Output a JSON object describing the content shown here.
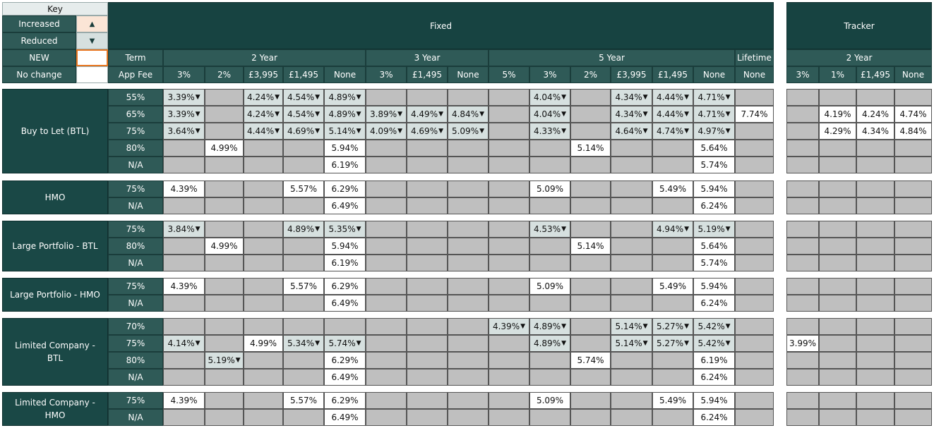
{
  "key": {
    "title": "Key",
    "items": [
      {
        "label": "Increased",
        "symbol": "▲"
      },
      {
        "label": "Reduced",
        "symbol": "▼"
      },
      {
        "label": "NEW"
      },
      {
        "label": "No change"
      }
    ]
  },
  "header": {
    "term_label": "Term",
    "app_fee_label": "App Fee",
    "groups": [
      {
        "title": "Fixed",
        "terms": [
          {
            "label": "2 Year",
            "fees": [
              "3%",
              "2%",
              "£3,995",
              "£1,495",
              "None"
            ]
          },
          {
            "label": "3 Year",
            "fees": [
              "3%",
              "£1,495",
              "None"
            ]
          },
          {
            "label": "5 Year",
            "fees": [
              "5%",
              "3%",
              "2%",
              "£3,995",
              "£1,495",
              "None"
            ]
          },
          {
            "label": "Lifetime",
            "fees": [
              "None"
            ]
          }
        ]
      },
      {
        "title": "Tracker",
        "terms": [
          {
            "label": "2 Year",
            "fees": [
              "3%",
              "1%",
              "£1,495",
              "None"
            ]
          }
        ]
      }
    ]
  },
  "sections": [
    {
      "name": "Buy to Let (BTL)",
      "rows": [
        {
          "ltv": "55%",
          "cells": [
            {
              "value": "3.39%",
              "change": "reduced"
            },
            null,
            {
              "value": "4.24%",
              "change": "reduced"
            },
            {
              "value": "4.54%",
              "change": "reduced"
            },
            {
              "value": "4.89%",
              "change": "reduced"
            },
            null,
            null,
            null,
            null,
            {
              "value": "4.04%",
              "change": "reduced"
            },
            null,
            {
              "value": "4.34%",
              "change": "reduced"
            },
            {
              "value": "4.44%",
              "change": "reduced"
            },
            {
              "value": "4.71%",
              "change": "reduced"
            },
            null,
            null,
            null,
            null,
            null
          ]
        },
        {
          "ltv": "65%",
          "cells": [
            {
              "value": "3.39%",
              "change": "reduced"
            },
            null,
            {
              "value": "4.24%",
              "change": "reduced"
            },
            {
              "value": "4.54%",
              "change": "reduced"
            },
            {
              "value": "4.89%",
              "change": "reduced"
            },
            {
              "value": "3.89%",
              "change": "reduced"
            },
            {
              "value": "4.49%",
              "change": "reduced"
            },
            {
              "value": "4.84%",
              "change": "reduced"
            },
            null,
            {
              "value": "4.04%",
              "change": "reduced"
            },
            null,
            {
              "value": "4.34%",
              "change": "reduced"
            },
            {
              "value": "4.44%",
              "change": "reduced"
            },
            {
              "value": "4.71%",
              "change": "reduced"
            },
            "7.74%",
            null,
            "4.19%",
            "4.24%",
            "4.74%"
          ]
        },
        {
          "ltv": "75%",
          "cells": [
            {
              "value": "3.64%",
              "change": "reduced"
            },
            null,
            {
              "value": "4.44%",
              "change": "reduced"
            },
            {
              "value": "4.69%",
              "change": "reduced"
            },
            {
              "value": "5.14%",
              "change": "reduced"
            },
            {
              "value": "4.09%",
              "change": "reduced"
            },
            {
              "value": "4.69%",
              "change": "reduced"
            },
            {
              "value": "5.09%",
              "change": "reduced"
            },
            null,
            {
              "value": "4.33%",
              "change": "reduced"
            },
            null,
            {
              "value": "4.64%",
              "change": "reduced"
            },
            {
              "value": "4.74%",
              "change": "reduced"
            },
            {
              "value": "4.97%",
              "change": "reduced"
            },
            null,
            null,
            "4.29%",
            "4.34%",
            "4.84%"
          ]
        },
        {
          "ltv": "80%",
          "cells": [
            null,
            "4.99%",
            null,
            null,
            "5.94%",
            null,
            null,
            null,
            null,
            null,
            "5.14%",
            null,
            null,
            "5.64%",
            null,
            null,
            null,
            null,
            null
          ]
        },
        {
          "ltv": "N/A",
          "cells": [
            null,
            null,
            null,
            null,
            "6.19%",
            null,
            null,
            null,
            null,
            null,
            null,
            null,
            null,
            "5.74%",
            null,
            null,
            null,
            null,
            null
          ]
        }
      ]
    },
    {
      "name": "HMO",
      "rows": [
        {
          "ltv": "75%",
          "cells": [
            "4.39%",
            null,
            null,
            "5.57%",
            "6.29%",
            null,
            null,
            null,
            null,
            "5.09%",
            null,
            null,
            "5.49%",
            "5.94%",
            null,
            null,
            null,
            null,
            null
          ]
        },
        {
          "ltv": "N/A",
          "cells": [
            null,
            null,
            null,
            null,
            "6.49%",
            null,
            null,
            null,
            null,
            null,
            null,
            null,
            null,
            "6.24%",
            null,
            null,
            null,
            null,
            null
          ]
        }
      ]
    },
    {
      "name": "Large Portfolio - BTL",
      "rows": [
        {
          "ltv": "75%",
          "cells": [
            {
              "value": "3.84%",
              "change": "reduced"
            },
            null,
            null,
            {
              "value": "4.89%",
              "change": "reduced"
            },
            {
              "value": "5.35%",
              "change": "reduced"
            },
            null,
            null,
            null,
            null,
            {
              "value": "4.53%",
              "change": "reduced"
            },
            null,
            null,
            {
              "value": "4.94%",
              "change": "reduced"
            },
            {
              "value": "5.19%",
              "change": "reduced"
            },
            null,
            null,
            null,
            null,
            null
          ]
        },
        {
          "ltv": "80%",
          "cells": [
            null,
            "4.99%",
            null,
            null,
            "5.94%",
            null,
            null,
            null,
            null,
            null,
            "5.14%",
            null,
            null,
            "5.64%",
            null,
            null,
            null,
            null,
            null
          ]
        },
        {
          "ltv": "N/A",
          "cells": [
            null,
            null,
            null,
            null,
            "6.19%",
            null,
            null,
            null,
            null,
            null,
            null,
            null,
            null,
            "5.74%",
            null,
            null,
            null,
            null,
            null
          ]
        }
      ]
    },
    {
      "name": "Large Portfolio - HMO",
      "rows": [
        {
          "ltv": "75%",
          "cells": [
            "4.39%",
            null,
            null,
            "5.57%",
            "6.29%",
            null,
            null,
            null,
            null,
            "5.09%",
            null,
            null,
            "5.49%",
            "5.94%",
            null,
            null,
            null,
            null,
            null
          ]
        },
        {
          "ltv": "N/A",
          "cells": [
            null,
            null,
            null,
            null,
            "6.49%",
            null,
            null,
            null,
            null,
            null,
            null,
            null,
            null,
            "6.24%",
            null,
            null,
            null,
            null,
            null
          ]
        }
      ]
    },
    {
      "name": "Limited Company - BTL",
      "rows": [
        {
          "ltv": "70%",
          "cells": [
            null,
            null,
            null,
            null,
            null,
            null,
            null,
            null,
            {
              "value": "4.39%",
              "change": "reduced"
            },
            {
              "value": "4.89%",
              "change": "reduced"
            },
            null,
            {
              "value": "5.14%",
              "change": "reduced"
            },
            {
              "value": "5.27%",
              "change": "reduced"
            },
            {
              "value": "5.42%",
              "change": "reduced"
            },
            null,
            null,
            null,
            null,
            null
          ]
        },
        {
          "ltv": "75%",
          "cells": [
            {
              "value": "4.14%",
              "change": "reduced"
            },
            null,
            "4.99%",
            {
              "value": "5.34%",
              "change": "reduced"
            },
            {
              "value": "5.74%",
              "change": "reduced"
            },
            null,
            null,
            null,
            null,
            {
              "value": "4.89%",
              "change": "reduced"
            },
            null,
            {
              "value": "5.14%",
              "change": "reduced"
            },
            {
              "value": "5.27%",
              "change": "reduced"
            },
            {
              "value": "5.42%",
              "change": "reduced"
            },
            null,
            "3.99%",
            null,
            null,
            null
          ]
        },
        {
          "ltv": "80%",
          "cells": [
            null,
            {
              "value": "5.19%",
              "change": "reduced"
            },
            null,
            null,
            "6.29%",
            null,
            null,
            null,
            null,
            null,
            "5.74%",
            null,
            null,
            "6.19%",
            null,
            null,
            null,
            null,
            null
          ]
        },
        {
          "ltv": "N/A",
          "cells": [
            null,
            null,
            null,
            null,
            "6.49%",
            null,
            null,
            null,
            null,
            null,
            null,
            null,
            null,
            "6.24%",
            null,
            null,
            null,
            null,
            null
          ]
        }
      ]
    },
    {
      "name": "Limited Company - HMO",
      "rows": [
        {
          "ltv": "75%",
          "cells": [
            "4.39%",
            null,
            null,
            "5.57%",
            "6.29%",
            null,
            null,
            null,
            null,
            "5.09%",
            null,
            null,
            "5.49%",
            "5.94%",
            null,
            null,
            null,
            null,
            null
          ]
        },
        {
          "ltv": "N/A",
          "cells": [
            null,
            null,
            null,
            null,
            "6.49%",
            null,
            null,
            null,
            null,
            null,
            null,
            null,
            null,
            "6.24%",
            null,
            null,
            null,
            null,
            null
          ]
        }
      ]
    }
  ]
}
